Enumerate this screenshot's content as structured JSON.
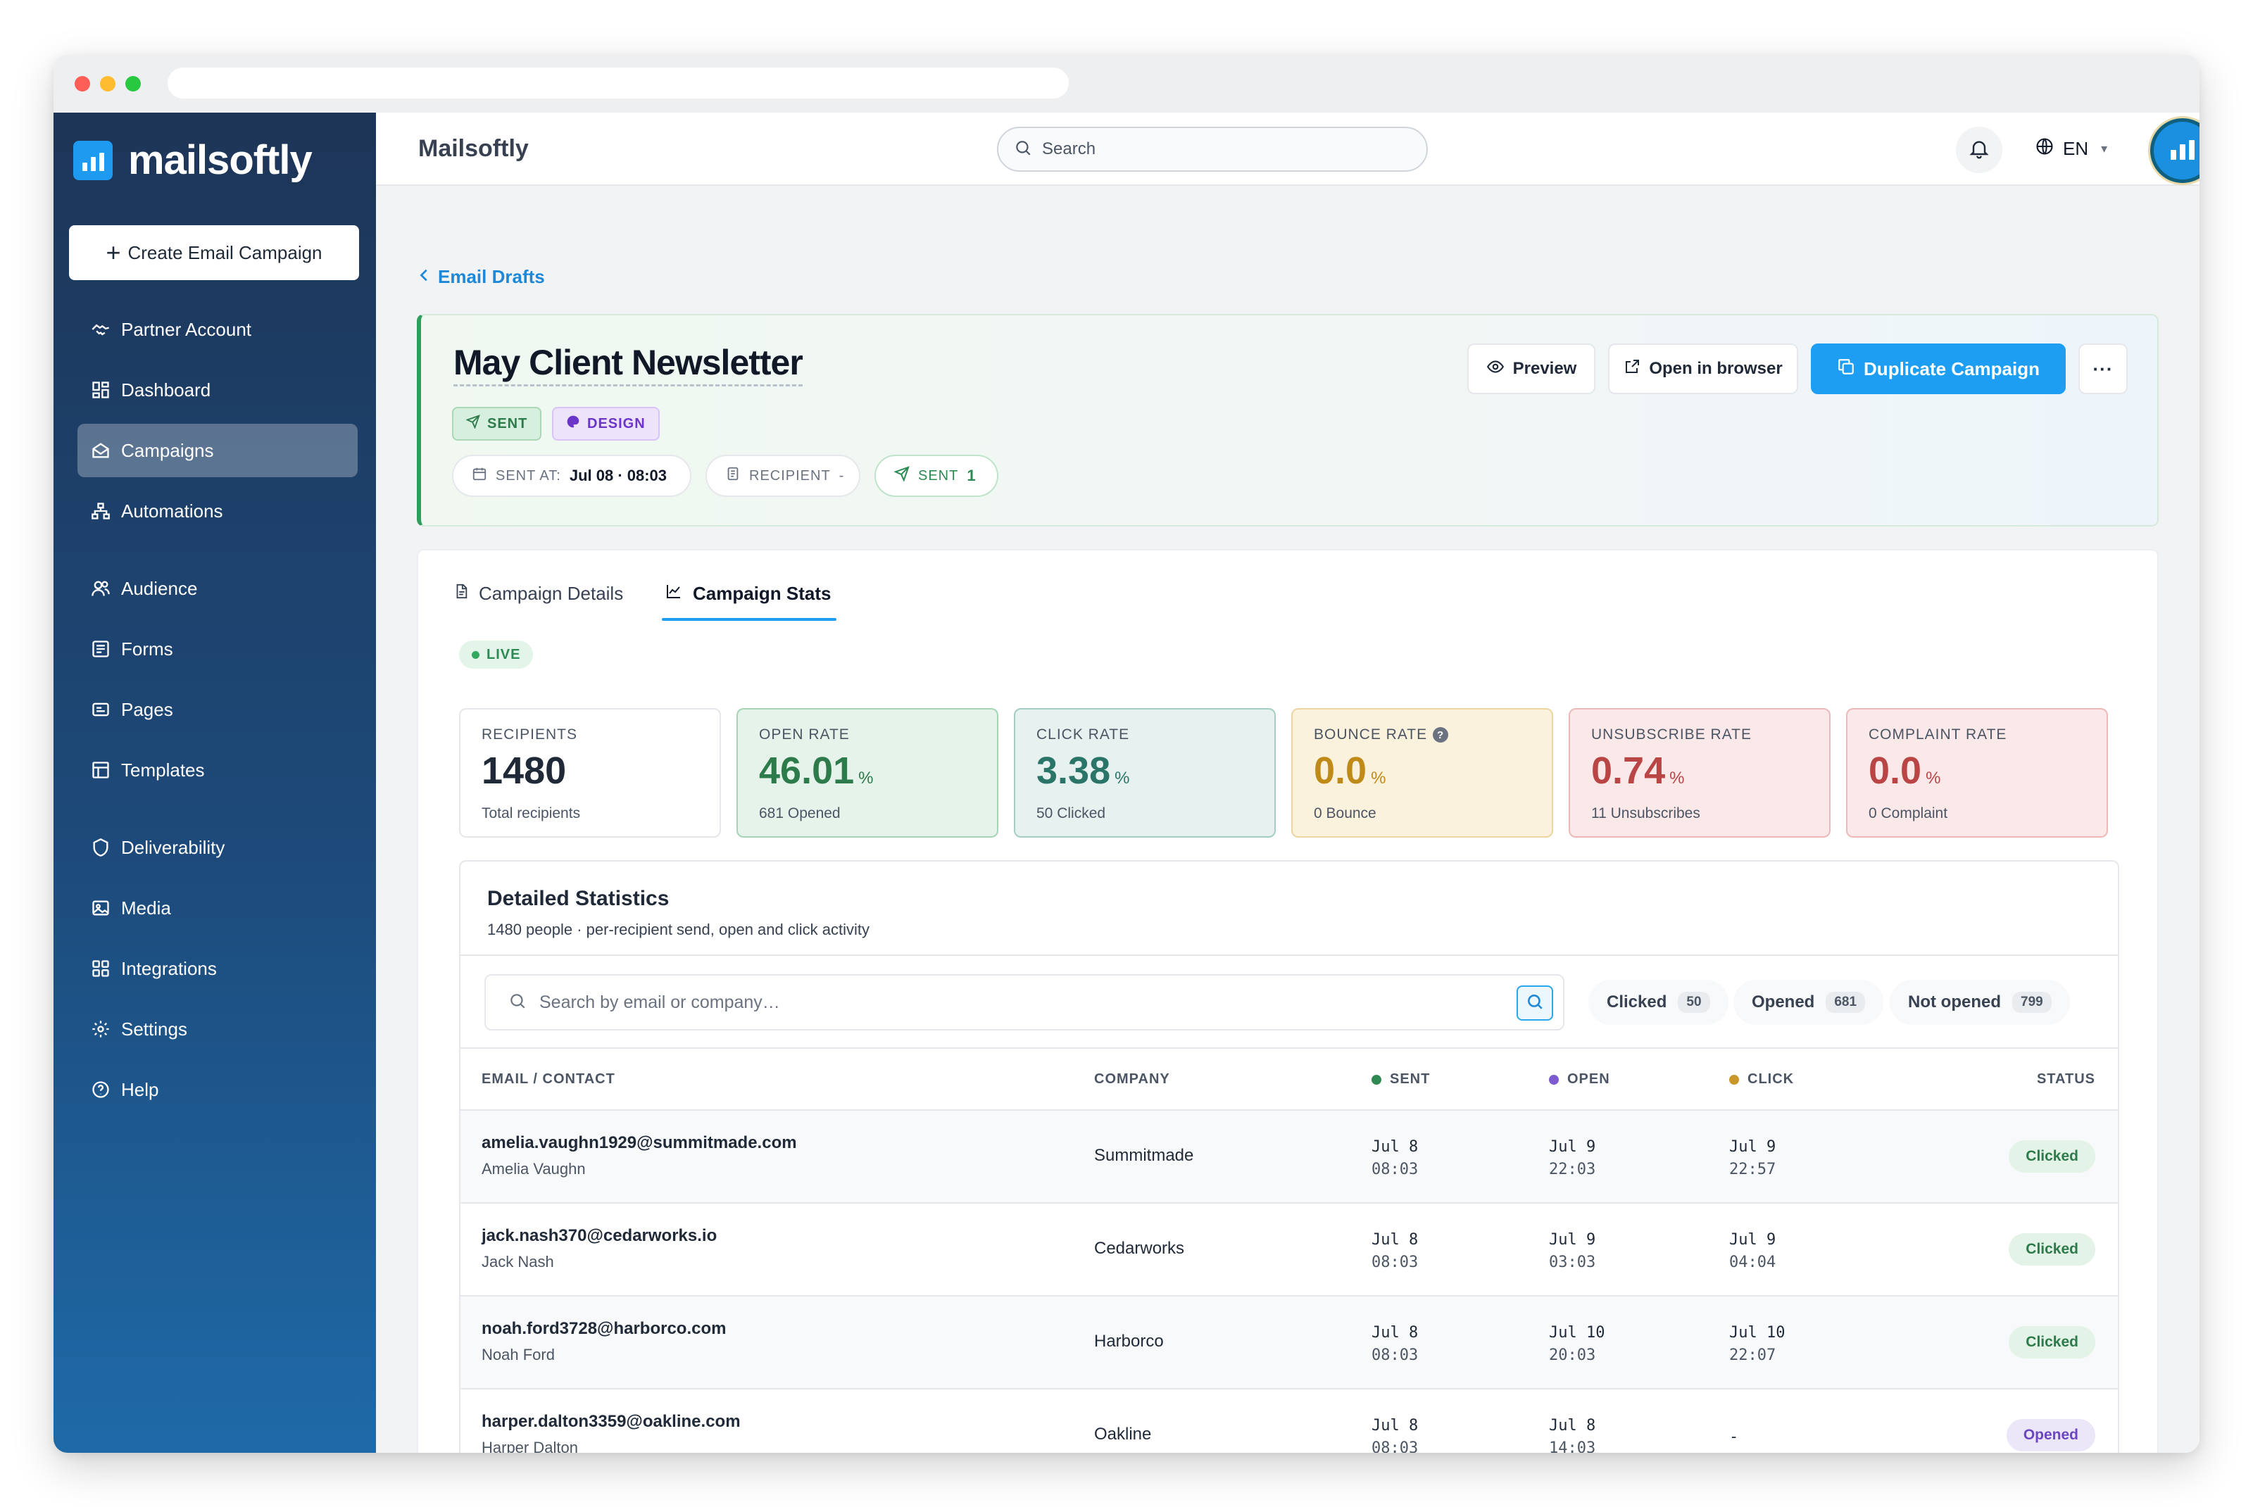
{
  "app": {
    "brand": "mailsoftly",
    "title": "Mailsoftly",
    "search_placeholder": "Search",
    "language": "EN"
  },
  "sidebar": {
    "create_label": "Create Email Campaign",
    "items": [
      {
        "label": "Partner Account",
        "icon": "handshake-icon",
        "active": false
      },
      {
        "label": "Dashboard",
        "icon": "grid-icon",
        "active": false
      },
      {
        "label": "Campaigns",
        "icon": "campaign-icon",
        "active": true
      },
      {
        "label": "Automations",
        "icon": "sitemap-icon",
        "active": false
      },
      {
        "label": "Audience",
        "icon": "users-icon",
        "active": false
      },
      {
        "label": "Forms",
        "icon": "form-icon",
        "active": false
      },
      {
        "label": "Pages",
        "icon": "page-icon",
        "active": false
      },
      {
        "label": "Templates",
        "icon": "template-icon",
        "active": false
      },
      {
        "label": "Deliverability",
        "icon": "shield-icon",
        "active": false
      },
      {
        "label": "Media",
        "icon": "image-icon",
        "active": false
      },
      {
        "label": "Integrations",
        "icon": "puzzle-icon",
        "active": false
      },
      {
        "label": "Settings",
        "icon": "gear-icon",
        "active": false
      },
      {
        "label": "Help",
        "icon": "help-icon",
        "active": false
      }
    ]
  },
  "breadcrumb": {
    "back_label": "Email Drafts"
  },
  "campaign": {
    "title": "May Client Newsletter",
    "badges": {
      "sent": "SENT",
      "design": "DESIGN"
    },
    "meta": {
      "sent_at_label": "SENT AT:",
      "sent_at_value": "Jul 08 · 08:03",
      "recipient_label": "RECIPIENT",
      "recipient_value": "-",
      "sent_label": "SENT",
      "sent_value": "1"
    },
    "actions": {
      "preview": "Preview",
      "open_in_browser": "Open in browser",
      "duplicate": "Duplicate Campaign",
      "more": "···"
    }
  },
  "tabs": {
    "details": "Campaign Details",
    "stats": "Campaign Stats",
    "active": "stats"
  },
  "live_label": "LIVE",
  "stats": {
    "recipients": {
      "label": "RECIPIENTS",
      "value": "1480",
      "sub": "Total recipients"
    },
    "open_rate": {
      "label": "OPEN RATE",
      "value": "46.01",
      "unit": "%",
      "sub": "681 Opened"
    },
    "click_rate": {
      "label": "CLICK RATE",
      "value": "3.38",
      "unit": "%",
      "sub": "50 Clicked"
    },
    "bounce_rate": {
      "label": "BOUNCE RATE",
      "value": "0.0",
      "unit": "%",
      "sub": "0 Bounce",
      "help": "?"
    },
    "unsubscribe_rate": {
      "label": "UNSUBSCRIBE RATE",
      "value": "0.74",
      "unit": "%",
      "sub": "11 Unsubscribes"
    },
    "complaint_rate": {
      "label": "COMPLAINT RATE",
      "value": "0.0",
      "unit": "%",
      "sub": "0 Complaint"
    }
  },
  "detailed": {
    "title": "Detailed Statistics",
    "subtitle": "1480 people · per-recipient send, open and click activity",
    "search_placeholder": "Search by email or company…",
    "filters": {
      "clicked": {
        "label": "Clicked",
        "count": "50"
      },
      "opened": {
        "label": "Opened",
        "count": "681"
      },
      "not_opened": {
        "label": "Not opened",
        "count": "799"
      }
    },
    "columns": {
      "email": "EMAIL / CONTACT",
      "company": "COMPANY",
      "sent": "SENT",
      "open": "OPEN",
      "click": "CLICK",
      "status": "STATUS"
    },
    "column_colors": {
      "sent": "#2f8a52",
      "open": "#7c5bd0",
      "click": "#c9972a"
    },
    "rows": [
      {
        "email": "amelia.vaughn1929@summitmade.com",
        "name": "Amelia Vaughn",
        "company": "Summitmade",
        "sent_date": "Jul 8",
        "sent_time": "08:03",
        "open_date": "Jul 9",
        "open_time": "22:03",
        "click_date": "Jul 9",
        "click_time": "22:57",
        "status": "Clicked"
      },
      {
        "email": "jack.nash370@cedarworks.io",
        "name": "Jack Nash",
        "company": "Cedarworks",
        "sent_date": "Jul 8",
        "sent_time": "08:03",
        "open_date": "Jul 9",
        "open_time": "03:03",
        "click_date": "Jul 9",
        "click_time": "04:04",
        "status": "Clicked"
      },
      {
        "email": "noah.ford3728@harborco.com",
        "name": "Noah Ford",
        "company": "Harborco",
        "sent_date": "Jul 8",
        "sent_time": "08:03",
        "open_date": "Jul 10",
        "open_time": "20:03",
        "click_date": "Jul 10",
        "click_time": "22:07",
        "status": "Clicked"
      },
      {
        "email": "harper.dalton3359@oakline.com",
        "name": "Harper Dalton",
        "company": "Oakline",
        "sent_date": "Jul 8",
        "sent_time": "08:03",
        "open_date": "Jul 8",
        "open_time": "14:03",
        "click_date": "-",
        "click_time": "",
        "status": "Opened"
      }
    ]
  }
}
